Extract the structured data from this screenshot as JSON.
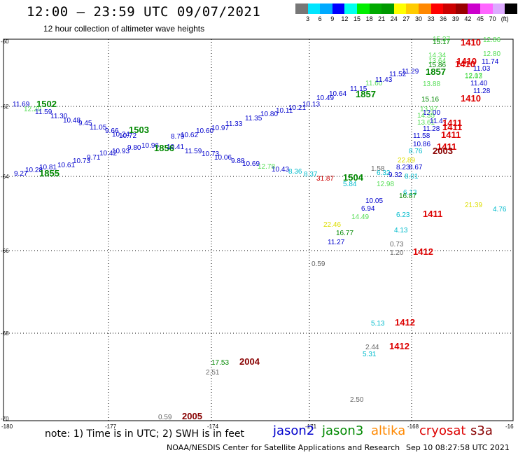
{
  "header": {
    "title": "12:00 — 23:59 UTC 09/07/2021",
    "subtitle": "12 hour collection of altimeter wave heights"
  },
  "colorbar": {
    "colors": [
      "#777777",
      "#00e5ff",
      "#00aaff",
      "#0000ff",
      "#00ffee",
      "#00ee00",
      "#00aa00",
      "#009900",
      "#ffff00",
      "#ffcc00",
      "#ff8800",
      "#ff0000",
      "#cc0000",
      "#990000",
      "#cc00cc",
      "#ff66ff",
      "#ddaaff",
      "#000000"
    ],
    "labels": [
      "3",
      "6",
      "9",
      "12",
      "15",
      "18",
      "21",
      "24",
      "27",
      "30",
      "33",
      "36",
      "39",
      "42",
      "45",
      "70",
      "(ft)"
    ]
  },
  "map": {
    "x_ticks": [
      "-180",
      "-177",
      "-174",
      "-171",
      "-168",
      "-16"
    ],
    "y_ticks": [
      "-60",
      "-62",
      "-64",
      "-66",
      "-68",
      "-70"
    ],
    "observations": [
      {
        "t": "11.69",
        "c": "#0000cc"
      },
      {
        "t": "1502",
        "c": "#008800",
        "b": true
      },
      {
        "t": "12.20",
        "c": "#55dd55"
      },
      {
        "t": "11.59",
        "c": "#0000cc"
      },
      {
        "t": "11.30",
        "c": "#0000cc"
      },
      {
        "t": "10.48",
        "c": "#0000cc"
      },
      {
        "t": "9.45",
        "c": "#0000cc"
      },
      {
        "t": "11.05",
        "c": "#0000cc"
      },
      {
        "t": "9.66",
        "c": "#0000cc"
      },
      {
        "t": "1503",
        "c": "#008800",
        "b": true
      },
      {
        "t": "10.72",
        "c": "#0000cc"
      },
      {
        "t": "10.24",
        "c": "#0000cc"
      },
      {
        "t": "8.79",
        "c": "#0000cc"
      },
      {
        "t": "10.62",
        "c": "#0000cc"
      },
      {
        "t": "10.60",
        "c": "#0000cc"
      },
      {
        "t": "10.97",
        "c": "#0000cc"
      },
      {
        "t": "11.33",
        "c": "#0000cc"
      },
      {
        "t": "11.35",
        "c": "#0000cc"
      },
      {
        "t": "10.80",
        "c": "#0000cc"
      },
      {
        "t": "10.11",
        "c": "#0000cc"
      },
      {
        "t": "10.21",
        "c": "#0000cc"
      },
      {
        "t": "10.13",
        "c": "#0000cc"
      },
      {
        "t": "10.49",
        "c": "#0000cc"
      },
      {
        "t": "10.64",
        "c": "#0000cc"
      },
      {
        "t": "11.15",
        "c": "#0000cc"
      },
      {
        "t": "1857",
        "c": "#008800",
        "b": true
      },
      {
        "t": "11.60",
        "c": "#55dd55"
      },
      {
        "t": "11.43",
        "c": "#0000cc"
      },
      {
        "t": "11.52",
        "c": "#0000cc"
      },
      {
        "t": "11.29",
        "c": "#0000cc"
      },
      {
        "t": "9.27",
        "c": "#0000cc"
      },
      {
        "t": "10.28",
        "c": "#0000cc"
      },
      {
        "t": "10.81",
        "c": "#0000cc"
      },
      {
        "t": "10.61",
        "c": "#0000cc"
      },
      {
        "t": "1855",
        "c": "#008800",
        "b": true
      },
      {
        "t": "10.73",
        "c": "#0000cc"
      },
      {
        "t": "9.71",
        "c": "#0000cc"
      },
      {
        "t": "10.42",
        "c": "#0000cc"
      },
      {
        "t": "10.93",
        "c": "#0000cc"
      },
      {
        "t": "9.80",
        "c": "#0000cc"
      },
      {
        "t": "10.96",
        "c": "#0000cc"
      },
      {
        "t": "1856",
        "c": "#008800",
        "b": true
      },
      {
        "t": "10.41",
        "c": "#0000cc"
      },
      {
        "t": "11.59",
        "c": "#0000cc"
      },
      {
        "t": "10.73",
        "c": "#0000cc"
      },
      {
        "t": "10.06",
        "c": "#0000cc"
      },
      {
        "t": "9.88",
        "c": "#0000cc"
      },
      {
        "t": "10.69",
        "c": "#0000cc"
      },
      {
        "t": "12.78",
        "c": "#55dd55"
      },
      {
        "t": "10.43",
        "c": "#0000cc"
      },
      {
        "t": "8.36",
        "c": "#00bbcc"
      },
      {
        "t": "8.37",
        "c": "#00bbcc"
      },
      {
        "t": "31.87",
        "c": "#cc0000"
      },
      {
        "t": "1504",
        "c": "#008800",
        "b": true
      },
      {
        "t": "5.84",
        "c": "#00bbcc"
      },
      {
        "t": "12.98",
        "c": "#55dd55"
      },
      {
        "t": "1.58",
        "c": "#666666"
      },
      {
        "t": "6.32",
        "c": "#00bbcc"
      },
      {
        "t": "9.32",
        "c": "#0000cc"
      },
      {
        "t": "10.05",
        "c": "#0000cc"
      },
      {
        "t": "6.94",
        "c": "#0000cc"
      },
      {
        "t": "14.49",
        "c": "#55dd55"
      },
      {
        "t": "22.46",
        "c": "#dddd00"
      },
      {
        "t": "16.77",
        "c": "#008800"
      },
      {
        "t": "11.27",
        "c": "#0000cc"
      },
      {
        "t": "6.13",
        "c": "#00bbcc"
      },
      {
        "t": "16.87",
        "c": "#008800"
      },
      {
        "t": "6.23",
        "c": "#00bbcc"
      },
      {
        "t": "4.13",
        "c": "#00bbcc"
      },
      {
        "t": "1411",
        "c": "#dd0000",
        "b": true
      },
      {
        "t": "21.39",
        "c": "#dddd00"
      },
      {
        "t": "4.76",
        "c": "#00bbcc"
      },
      {
        "t": "0.73",
        "c": "#666666"
      },
      {
        "t": "1.20",
        "c": "#666666"
      },
      {
        "t": "1412",
        "c": "#dd0000",
        "b": true
      },
      {
        "t": "0.59",
        "c": "#666666"
      },
      {
        "t": "5.13",
        "c": "#00bbcc"
      },
      {
        "t": "1412",
        "c": "#dd0000",
        "b": true
      },
      {
        "t": "2.44",
        "c": "#666666"
      },
      {
        "t": "1412",
        "c": "#dd0000",
        "b": true
      },
      {
        "t": "5.31",
        "c": "#00bbcc"
      },
      {
        "t": "17.53",
        "c": "#008800"
      },
      {
        "t": "2004",
        "c": "#880000",
        "b": true
      },
      {
        "t": "2.51",
        "c": "#666666"
      },
      {
        "t": "2.50",
        "c": "#666666"
      },
      {
        "t": "0.59",
        "c": "#666666"
      },
      {
        "t": "2005",
        "c": "#880000",
        "b": true
      },
      {
        "t": "15.37",
        "c": "#55dd55"
      },
      {
        "t": "15.17",
        "c": "#008800"
      },
      {
        "t": "1410",
        "c": "#dd0000",
        "b": true
      },
      {
        "t": "12.86",
        "c": "#55dd55"
      },
      {
        "t": "14.34",
        "c": "#55dd55"
      },
      {
        "t": "13.64",
        "c": "#55dd55"
      },
      {
        "t": "12.80",
        "c": "#55dd55"
      },
      {
        "t": "1410",
        "c": "#dd0000",
        "b": true
      },
      {
        "t": "15.86",
        "c": "#008800"
      },
      {
        "t": "1410",
        "c": "#dd0000",
        "b": true
      },
      {
        "t": "11.74",
        "c": "#0000cc"
      },
      {
        "t": "11.03",
        "c": "#0000cc"
      },
      {
        "t": "1857",
        "c": "#008800",
        "b": true
      },
      {
        "t": "12.03",
        "c": "#55dd55"
      },
      {
        "t": "12.17",
        "c": "#55dd55"
      },
      {
        "t": "13.88",
        "c": "#55dd55"
      },
      {
        "t": "11.40",
        "c": "#0000cc"
      },
      {
        "t": "11.28",
        "c": "#0000cc"
      },
      {
        "t": "15.16",
        "c": "#008800"
      },
      {
        "t": "1410",
        "c": "#dd0000",
        "b": true
      },
      {
        "t": "13.97",
        "c": "#55dd55"
      },
      {
        "t": "12.00",
        "c": "#0000cc"
      },
      {
        "t": "14.35",
        "c": "#55dd55"
      },
      {
        "t": "13.61",
        "c": "#55dd55"
      },
      {
        "t": "11.47",
        "c": "#0000cc"
      },
      {
        "t": "1411",
        "c": "#dd0000",
        "b": true
      },
      {
        "t": "11.28",
        "c": "#0000cc"
      },
      {
        "t": "1411",
        "c": "#dd0000",
        "b": true
      },
      {
        "t": "11.58",
        "c": "#0000cc"
      },
      {
        "t": "1411",
        "c": "#dd0000",
        "b": true
      },
      {
        "t": "10.86",
        "c": "#0000cc"
      },
      {
        "t": "1411",
        "c": "#dd0000",
        "b": true
      },
      {
        "t": "8.76",
        "c": "#00bbcc"
      },
      {
        "t": "2003",
        "c": "#880000",
        "b": true
      },
      {
        "t": "22.89",
        "c": "#dddd00"
      },
      {
        "t": "8.23",
        "c": "#0000cc"
      },
      {
        "t": "8.67",
        "c": "#0000cc"
      },
      {
        "t": "8.01",
        "c": "#00bbcc"
      }
    ]
  },
  "footer": {
    "note": "note: 1) Time is in UTC; 2) SWH is in feet",
    "satellites": [
      {
        "name": "jason2",
        "color": "#0000cc"
      },
      {
        "name": "jason3",
        "color": "#008800"
      },
      {
        "name": "altika",
        "color": "#ff8800"
      },
      {
        "name": "cryosat",
        "color": "#dd0000"
      },
      {
        "name": "s3a",
        "color": "#880000"
      }
    ],
    "credit": "NOAA/NESDIS Center for Satellite Applications and Research",
    "timestamp": "Sep 10 08:27:58 UTC 2021"
  }
}
